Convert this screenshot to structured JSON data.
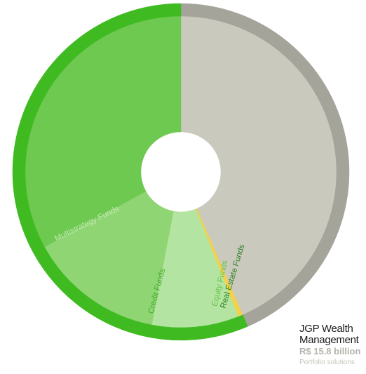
{
  "chart_data": {
    "type": "donut",
    "title": "JGP Wealth Management",
    "subtitle": "R$ 15.8 billion",
    "caption": "Portfolio solutions",
    "categories": [
      null,
      "Real Estate Funds",
      "Equity Funds",
      "Credit Funds",
      "Multistrategy Funds"
    ],
    "values": [
      43.5,
      0.5,
      9,
      14,
      33
    ],
    "colors": [
      "#c9c9be",
      "#f2d24c",
      "#b4e4a1",
      "#90d574",
      "#6dc94f"
    ],
    "ring_colors": [
      "#a4a49a",
      "#3fbb21",
      "#3fbb21",
      "#3fbb21",
      "#3fbb21"
    ],
    "label_colors": [
      null,
      "#2f7f1e",
      "#67c54a",
      "#46ad2d",
      "#c3eab1"
    ]
  }
}
